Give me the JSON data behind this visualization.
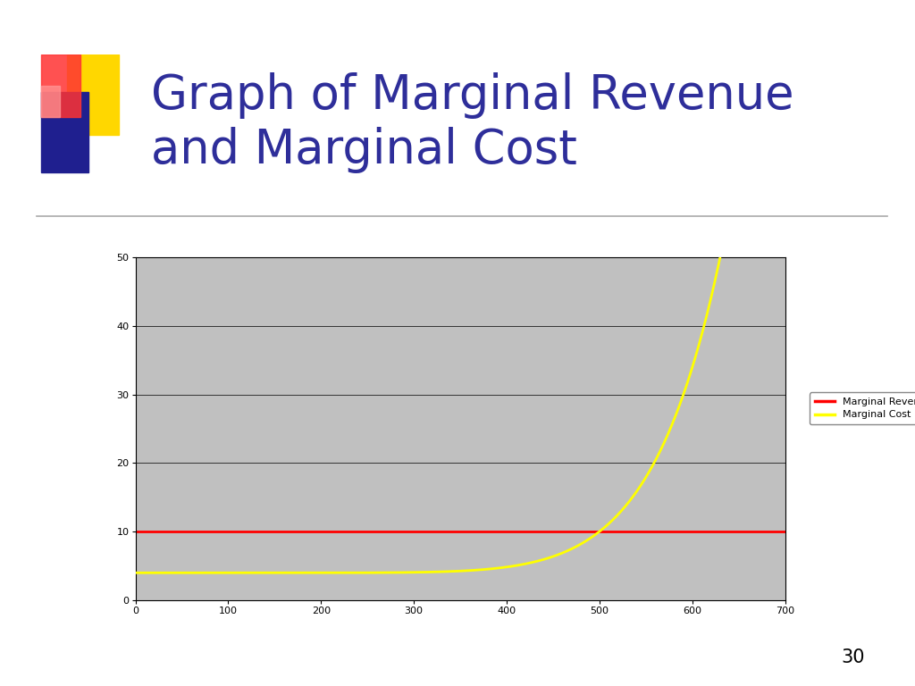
{
  "title_line1": "Graph of Marginal Revenue",
  "title_line2": "and Marginal Cost",
  "title_color": "#2E2E9A",
  "title_fontsize": 38,
  "background_color": "#ffffff",
  "plot_bg_color": "#C0C0C0",
  "xlim": [
    0,
    700
  ],
  "ylim": [
    0,
    50
  ],
  "xticks": [
    0,
    100,
    200,
    300,
    400,
    500,
    600,
    700
  ],
  "yticks": [
    0,
    10,
    20,
    30,
    40,
    50
  ],
  "mr_value": 10,
  "mr_color": "#FF0000",
  "mc_color": "#FFFF00",
  "mr_label": "Marginal Revenue",
  "mc_label": "Marginal Cost",
  "legend_fontsize": 8,
  "tick_fontsize": 8,
  "line_width": 2.0,
  "page_number": "30",
  "logo_yellow": "#FFD700",
  "logo_blue": "#1F1F8F",
  "logo_red": "#FF3333",
  "logo_pink": "#FF9999"
}
